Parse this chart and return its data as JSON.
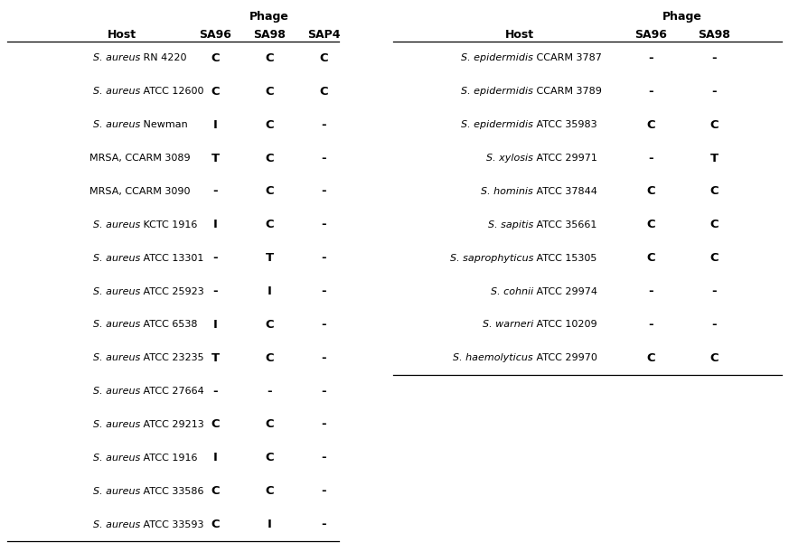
{
  "left_table": {
    "phage_label": "Phage",
    "host_label": "Host",
    "columns": [
      "SA96",
      "SA98",
      "SAP4"
    ],
    "rows": [
      {
        "host_italic": "S. aureus",
        "host_rest": "RN 4220",
        "italic_part": true,
        "vals": [
          "C",
          "C",
          "C"
        ]
      },
      {
        "host_italic": "S. aureus",
        "host_rest": "ATCC 12600",
        "italic_part": true,
        "vals": [
          "C",
          "C",
          "C"
        ]
      },
      {
        "host_italic": "S. aureus",
        "host_rest": "Newman",
        "italic_part": true,
        "vals": [
          "I",
          "C",
          "-"
        ]
      },
      {
        "host_italic": "",
        "host_rest": "MRSA, CCARM 3089",
        "italic_part": false,
        "vals": [
          "T",
          "C",
          "-"
        ]
      },
      {
        "host_italic": "",
        "host_rest": "MRSA, CCARM 3090",
        "italic_part": false,
        "vals": [
          "-",
          "C",
          "-"
        ]
      },
      {
        "host_italic": "S. aureus",
        "host_rest": "KCTC 1916",
        "italic_part": true,
        "vals": [
          "I",
          "C",
          "-"
        ]
      },
      {
        "host_italic": "S. aureus",
        "host_rest": "ATCC 13301",
        "italic_part": true,
        "vals": [
          "-",
          "T",
          "-"
        ]
      },
      {
        "host_italic": "S. aureus",
        "host_rest": "ATCC 25923",
        "italic_part": true,
        "vals": [
          "-",
          "I",
          "-"
        ]
      },
      {
        "host_italic": "S. aureus",
        "host_rest": "ATCC 6538",
        "italic_part": true,
        "vals": [
          "I",
          "C",
          "-"
        ]
      },
      {
        "host_italic": "S. aureus",
        "host_rest": "ATCC 23235",
        "italic_part": true,
        "vals": [
          "T",
          "C",
          "-"
        ]
      },
      {
        "host_italic": "S. aureus",
        "host_rest": "ATCC 27664",
        "italic_part": true,
        "vals": [
          "-",
          "-",
          "-"
        ]
      },
      {
        "host_italic": "S. aureus",
        "host_rest": "ATCC 29213",
        "italic_part": true,
        "vals": [
          "C",
          "C",
          "-"
        ]
      },
      {
        "host_italic": "S. aureus",
        "host_rest": "ATCC 1916",
        "italic_part": true,
        "vals": [
          "I",
          "C",
          "-"
        ]
      },
      {
        "host_italic": "S. aureus",
        "host_rest": "ATCC 33586",
        "italic_part": true,
        "vals": [
          "C",
          "C",
          "-"
        ]
      },
      {
        "host_italic": "S. aureus",
        "host_rest": "ATCC 33593",
        "italic_part": true,
        "vals": [
          "C",
          "I",
          "-"
        ]
      }
    ]
  },
  "right_table": {
    "phage_label": "Phage",
    "host_label": "Host",
    "columns": [
      "SA96",
      "SA98"
    ],
    "rows": [
      {
        "host_italic": "S. epidermidis",
        "host_rest": "CCARM 3787",
        "italic_part": true,
        "vals": [
          "-",
          "-"
        ]
      },
      {
        "host_italic": "S. epidermidis",
        "host_rest": "CCARM 3789",
        "italic_part": true,
        "vals": [
          "-",
          "-"
        ]
      },
      {
        "host_italic": "S. epidermidis",
        "host_rest": "ATCC 35983",
        "italic_part": true,
        "vals": [
          "C",
          "C"
        ]
      },
      {
        "host_italic": "S. xylosis",
        "host_rest": "ATCC 29971",
        "italic_part": true,
        "vals": [
          "-",
          "T"
        ]
      },
      {
        "host_italic": "S. hominis",
        "host_rest": "ATCC 37844",
        "italic_part": true,
        "vals": [
          "C",
          "C"
        ]
      },
      {
        "host_italic": "S. sapitis",
        "host_rest": "ATCC 35661",
        "italic_part": true,
        "vals": [
          "C",
          "C"
        ]
      },
      {
        "host_italic": "S. saprophyticus",
        "host_rest": "ATCC 15305",
        "italic_part": true,
        "vals": [
          "C",
          "C"
        ]
      },
      {
        "host_italic": "S. cohnii",
        "host_rest": "ATCC 29974",
        "italic_part": true,
        "vals": [
          "-",
          "-"
        ]
      },
      {
        "host_italic": "S. warneri",
        "host_rest": "ATCC 10209",
        "italic_part": true,
        "vals": [
          "-",
          "-"
        ]
      },
      {
        "host_italic": "S. haemolyticus",
        "host_rest": "ATCC 29970",
        "italic_part": true,
        "vals": [
          "C",
          "C"
        ]
      }
    ]
  },
  "bg_color": "#ffffff",
  "text_color": "#000000",
  "font_size": 8.0,
  "header_font_size": 9.0,
  "val_font_size": 9.5,
  "fig_width": 8.73,
  "fig_height": 6.11,
  "dpi": 100
}
